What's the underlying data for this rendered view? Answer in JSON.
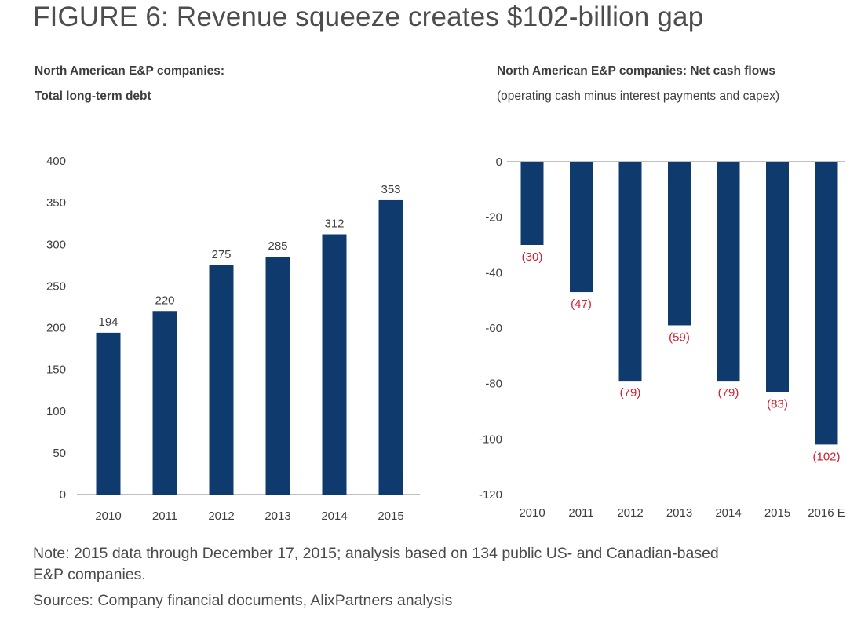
{
  "figure": {
    "title": "FIGURE 6: Revenue squeeze creates $102-billion gap",
    "note_line1": "Note: 2015 data through December 17, 2015; analysis based on 134 public US- and Canadian-based",
    "note_line2": "E&P companies.",
    "sources": "Sources: Company financial documents, AlixPartners analysis"
  },
  "colors": {
    "bar": "#0f3a6d",
    "negative_label": "#d0202e",
    "text": "#3d3d3d",
    "axis": "#9a9a9a"
  },
  "chart_data": [
    {
      "type": "bar",
      "title_line1": "North American E&P companies:",
      "title_line2": "Total long-term debt",
      "categories": [
        "2010",
        "2011",
        "2012",
        "2013",
        "2014",
        "2015"
      ],
      "values": [
        194,
        220,
        275,
        285,
        312,
        353
      ],
      "labels": [
        "194",
        "220",
        "275",
        "285",
        "312",
        "353"
      ],
      "ylim": [
        0,
        400
      ],
      "yticks": [
        "0",
        "50",
        "100",
        "150",
        "200",
        "250",
        "300",
        "350",
        "400"
      ],
      "ytick_values": [
        0,
        50,
        100,
        150,
        200,
        250,
        300,
        350,
        400
      ]
    },
    {
      "type": "bar",
      "title_line1": "North American E&P companies: Net cash flows",
      "title_line2": "(operating cash minus interest payments and capex)",
      "categories": [
        "2010",
        "2011",
        "2012",
        "2013",
        "2014",
        "2015",
        "2016 E"
      ],
      "values": [
        -30,
        -47,
        -79,
        -59,
        -79,
        -83,
        -102
      ],
      "labels": [
        "(30)",
        "(47)",
        "(79)",
        "(59)",
        "(79)",
        "(83)",
        "(102)"
      ],
      "ylim": [
        -120,
        0
      ],
      "yticks": [
        "0",
        "-20",
        "-40",
        "-60",
        "-80",
        "-100",
        "-120"
      ],
      "ytick_values": [
        0,
        -20,
        -40,
        -60,
        -80,
        -100,
        -120
      ]
    }
  ]
}
